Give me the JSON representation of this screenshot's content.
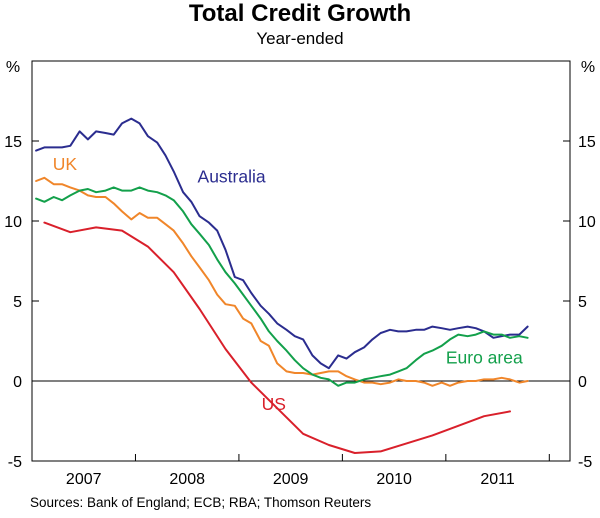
{
  "chart_data": {
    "type": "line",
    "title": "Total Credit Growth",
    "subtitle": "Year-ended",
    "ylabel_left": "%",
    "ylabel_right": "%",
    "ylim": [
      -5,
      20
    ],
    "yticks": [
      -5,
      0,
      5,
      10,
      15
    ],
    "xlim": [
      2006.5,
      2011.7
    ],
    "xticks": [
      {
        "label": "2007",
        "value": 2007.0
      },
      {
        "label": "2008",
        "value": 2008.0
      },
      {
        "label": "2009",
        "value": 2009.0
      },
      {
        "label": "2010",
        "value": 2010.0
      },
      {
        "label": "2011",
        "value": 2011.0
      }
    ],
    "year_dividers": [
      2007.5,
      2008.5,
      2009.5,
      2010.5,
      2011.5
    ],
    "source": "Sources: Bank of England; ECB; RBA; Thomson Reuters",
    "series": [
      {
        "name": "Australia",
        "color": "#2b2d8f",
        "label_at": [
          2008.1,
          12.4
        ],
        "x": [
          2006.54,
          2006.62,
          2006.71,
          2006.79,
          2006.87,
          2006.96,
          2007.04,
          2007.12,
          2007.21,
          2007.29,
          2007.37,
          2007.46,
          2007.54,
          2007.62,
          2007.71,
          2007.79,
          2007.87,
          2007.96,
          2008.04,
          2008.12,
          2008.21,
          2008.29,
          2008.37,
          2008.46,
          2008.54,
          2008.62,
          2008.71,
          2008.79,
          2008.87,
          2008.96,
          2009.04,
          2009.12,
          2009.21,
          2009.29,
          2009.37,
          2009.46,
          2009.54,
          2009.62,
          2009.71,
          2009.79,
          2009.87,
          2009.96,
          2010.04,
          2010.12,
          2010.21,
          2010.29,
          2010.37,
          2010.46,
          2010.54,
          2010.62,
          2010.71,
          2010.79,
          2010.87,
          2010.96,
          2011.04,
          2011.12,
          2011.21,
          2011.29
        ],
        "y": [
          14.4,
          14.6,
          14.6,
          14.6,
          14.7,
          15.6,
          15.1,
          15.6,
          15.5,
          15.4,
          16.1,
          16.4,
          16.1,
          15.3,
          14.9,
          14.1,
          13.1,
          11.8,
          11.2,
          10.3,
          9.9,
          9.4,
          8.2,
          6.5,
          6.3,
          5.5,
          4.7,
          4.2,
          3.6,
          3.2,
          2.8,
          2.6,
          1.6,
          1.1,
          0.8,
          1.6,
          1.4,
          1.8,
          2.1,
          2.6,
          3.0,
          3.2,
          3.1,
          3.1,
          3.2,
          3.2,
          3.4,
          3.3,
          3.2,
          3.3,
          3.4,
          3.3,
          3.1,
          2.7,
          2.8,
          2.9,
          2.9,
          3.4
        ]
      },
      {
        "name": "UK",
        "color": "#f0862a",
        "label_at": [
          2006.7,
          13.2
        ],
        "x": [
          2006.54,
          2006.62,
          2006.71,
          2006.79,
          2006.87,
          2006.96,
          2007.04,
          2007.12,
          2007.21,
          2007.29,
          2007.37,
          2007.46,
          2007.54,
          2007.62,
          2007.71,
          2007.79,
          2007.87,
          2007.96,
          2008.04,
          2008.12,
          2008.21,
          2008.29,
          2008.37,
          2008.46,
          2008.54,
          2008.62,
          2008.71,
          2008.79,
          2008.87,
          2008.96,
          2009.04,
          2009.12,
          2009.21,
          2009.29,
          2009.37,
          2009.46,
          2009.54,
          2009.62,
          2009.71,
          2009.79,
          2009.87,
          2009.96,
          2010.04,
          2010.12,
          2010.21,
          2010.29,
          2010.37,
          2010.46,
          2010.54,
          2010.62,
          2010.71,
          2010.79,
          2010.87,
          2010.96,
          2011.04,
          2011.12,
          2011.21,
          2011.29
        ],
        "y": [
          12.5,
          12.7,
          12.3,
          12.3,
          12.1,
          11.9,
          11.6,
          11.5,
          11.5,
          11.1,
          10.6,
          10.1,
          10.5,
          10.2,
          10.2,
          9.8,
          9.4,
          8.6,
          7.8,
          7.1,
          6.3,
          5.4,
          4.8,
          4.7,
          3.9,
          3.6,
          2.5,
          2.2,
          1.1,
          0.6,
          0.5,
          0.5,
          0.4,
          0.5,
          0.6,
          0.6,
          0.3,
          0.1,
          -0.1,
          -0.1,
          -0.2,
          -0.1,
          0.1,
          0.0,
          0.0,
          -0.1,
          -0.3,
          -0.1,
          -0.3,
          -0.1,
          0.0,
          0.0,
          0.1,
          0.1,
          0.2,
          0.1,
          -0.1,
          0.0
        ]
      },
      {
        "name": "Euro area",
        "color": "#13a04b",
        "label_at": [
          2010.5,
          1.1
        ],
        "x": [
          2006.54,
          2006.62,
          2006.71,
          2006.79,
          2006.87,
          2006.96,
          2007.04,
          2007.12,
          2007.21,
          2007.29,
          2007.37,
          2007.46,
          2007.54,
          2007.62,
          2007.71,
          2007.79,
          2007.87,
          2007.96,
          2008.04,
          2008.12,
          2008.21,
          2008.29,
          2008.37,
          2008.46,
          2008.54,
          2008.62,
          2008.71,
          2008.79,
          2008.87,
          2008.96,
          2009.04,
          2009.12,
          2009.21,
          2009.29,
          2009.37,
          2009.46,
          2009.54,
          2009.62,
          2009.71,
          2009.79,
          2009.87,
          2009.96,
          2010.04,
          2010.12,
          2010.21,
          2010.29,
          2010.37,
          2010.46,
          2010.54,
          2010.62,
          2010.71,
          2010.79,
          2010.87,
          2010.96,
          2011.04,
          2011.12,
          2011.21,
          2011.29
        ],
        "y": [
          11.4,
          11.2,
          11.5,
          11.3,
          11.6,
          11.9,
          12.0,
          11.8,
          11.9,
          12.1,
          11.9,
          11.9,
          12.1,
          11.9,
          11.8,
          11.6,
          11.3,
          10.6,
          9.8,
          9.2,
          8.5,
          7.6,
          6.8,
          6.1,
          5.4,
          4.7,
          3.9,
          3.1,
          2.5,
          1.9,
          1.3,
          0.8,
          0.4,
          0.2,
          0.1,
          -0.3,
          -0.1,
          -0.1,
          0.1,
          0.2,
          0.3,
          0.4,
          0.6,
          0.8,
          1.3,
          1.7,
          1.9,
          2.2,
          2.6,
          2.9,
          2.8,
          2.9,
          3.1,
          2.9,
          2.9,
          2.7,
          2.8,
          2.7
        ]
      },
      {
        "name": "US",
        "color": "#d9202b",
        "label_at": [
          2008.72,
          -1.8
        ],
        "x": [
          2006.62,
          2006.87,
          2007.12,
          2007.37,
          2007.62,
          2007.87,
          2008.12,
          2008.37,
          2008.62,
          2008.87,
          2009.12,
          2009.37,
          2009.62,
          2009.87,
          2010.12,
          2010.37,
          2010.62,
          2010.87,
          2011.12
        ],
        "y": [
          9.9,
          9.3,
          9.6,
          9.4,
          8.4,
          6.8,
          4.5,
          2.0,
          -0.1,
          -1.7,
          -3.3,
          -4.0,
          -4.5,
          -4.4,
          -3.9,
          -3.4,
          -2.8,
          -2.2,
          -1.9
        ]
      }
    ]
  }
}
